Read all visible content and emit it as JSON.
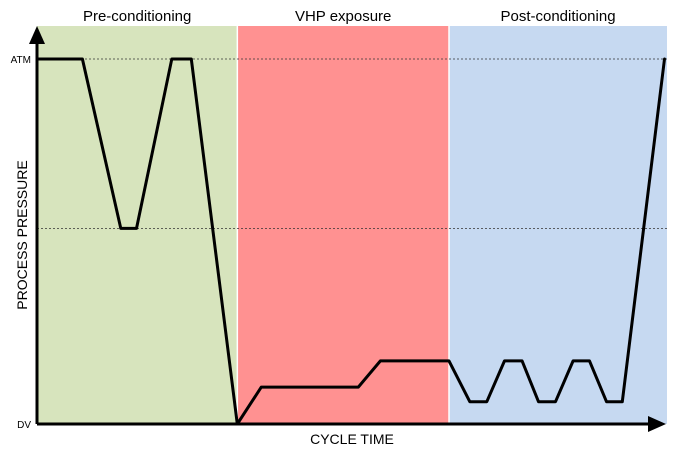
{
  "phases": [
    {
      "label": "Pre-conditioning",
      "color": "#d7e4bd"
    },
    {
      "label": "VHP exposure",
      "color": "#ff9191"
    },
    {
      "label": "Post-conditioning",
      "color": "#c6d9f1"
    }
  ],
  "axes": {
    "x_title": "CYCLE TIME",
    "y_title": "PROCESS PRESSURE",
    "y_top_label": "ATM",
    "y_bottom_label": "DV"
  },
  "colors": {
    "curve": "#000000",
    "axis": "#000000",
    "gridline": "#333333",
    "phase_divider": "#ffffff"
  },
  "chart_data": {
    "type": "line",
    "x_range": [
      0,
      100
    ],
    "y_range": [
      0,
      100
    ],
    "phase_boundaries": [
      0,
      31.8,
      65.4,
      100
    ],
    "dashed_levels": [
      100,
      53.6
    ],
    "series": [
      {
        "points": [
          [
            0,
            100
          ],
          [
            7.2,
            100
          ],
          [
            13.3,
            53.6
          ],
          [
            15.8,
            53.6
          ],
          [
            21.4,
            100
          ],
          [
            24.5,
            100
          ],
          [
            31.8,
            0
          ],
          [
            35.6,
            10.1
          ],
          [
            51.0,
            10.1
          ],
          [
            54.5,
            17.3
          ],
          [
            65.4,
            17.3
          ],
          [
            68.7,
            6.1
          ],
          [
            71.4,
            6.1
          ],
          [
            74.2,
            17.3
          ],
          [
            77.0,
            17.3
          ],
          [
            79.6,
            6.1
          ],
          [
            82.3,
            6.1
          ],
          [
            85.1,
            17.3
          ],
          [
            87.7,
            17.3
          ],
          [
            90.4,
            6.1
          ],
          [
            92.9,
            6.1
          ],
          [
            99.6,
            100
          ]
        ]
      }
    ]
  }
}
